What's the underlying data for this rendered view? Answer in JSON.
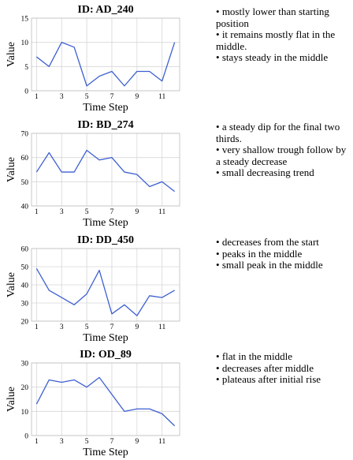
{
  "chart_data": [
    {
      "type": "line",
      "title": "ID: AD_240",
      "xlabel": "Time Step",
      "ylabel": "Value",
      "x": [
        1,
        2,
        3,
        4,
        5,
        6,
        7,
        8,
        9,
        10,
        11,
        12
      ],
      "series": [
        {
          "values": [
            7,
            5,
            10,
            9,
            1,
            3,
            4,
            1,
            4,
            4,
            2,
            10
          ]
        }
      ],
      "ylim": [
        0,
        15
      ],
      "yticks": [
        0,
        5,
        10,
        15
      ],
      "xticks": [
        1,
        3,
        5,
        7,
        9,
        11
      ],
      "grid": true,
      "line_color": "#3d5fd1",
      "descriptions": [
        "mostly lower than starting position",
        "it remains mostly flat in the middle.",
        "stays steady in the middle"
      ]
    },
    {
      "type": "line",
      "title": "ID: BD_274",
      "xlabel": "Time Step",
      "ylabel": "Value",
      "x": [
        1,
        2,
        3,
        4,
        5,
        6,
        7,
        8,
        9,
        10,
        11,
        12
      ],
      "series": [
        {
          "values": [
            54,
            62,
            54,
            54,
            63,
            59,
            60,
            54,
            53,
            48,
            50,
            46
          ]
        }
      ],
      "ylim": [
        40,
        70
      ],
      "yticks": [
        40,
        50,
        60,
        70
      ],
      "xticks": [
        1,
        3,
        5,
        7,
        9,
        11
      ],
      "grid": true,
      "line_color": "#3d5fd1",
      "descriptions": [
        "a steady dip for the final two thirds.",
        "very shallow trough follow by a steady decrease",
        "small decreasing trend"
      ]
    },
    {
      "type": "line",
      "title": "ID: DD_450",
      "xlabel": "Time Step",
      "ylabel": "Value",
      "x": [
        1,
        2,
        3,
        4,
        5,
        6,
        7,
        8,
        9,
        10,
        11,
        12
      ],
      "series": [
        {
          "values": [
            49,
            37,
            33,
            29,
            35,
            48,
            24,
            29,
            23,
            34,
            33,
            37
          ]
        }
      ],
      "ylim": [
        20,
        60
      ],
      "yticks": [
        20,
        30,
        40,
        50,
        60
      ],
      "xticks": [
        1,
        3,
        5,
        7,
        9,
        11
      ],
      "grid": true,
      "line_color": "#3d5fd1",
      "descriptions": [
        "decreases from the start",
        "peaks in the middle",
        "small peak in the middle"
      ]
    },
    {
      "type": "line",
      "title": "ID: OD_89",
      "xlabel": "Time Step",
      "ylabel": "Value",
      "x": [
        1,
        2,
        3,
        4,
        5,
        6,
        7,
        8,
        9,
        10,
        11,
        12
      ],
      "series": [
        {
          "values": [
            13,
            23,
            22,
            23,
            20,
            24,
            17,
            10,
            11,
            11,
            9,
            4
          ]
        }
      ],
      "ylim": [
        0,
        30
      ],
      "yticks": [
        0,
        10,
        20,
        30
      ],
      "xticks": [
        1,
        3,
        5,
        7,
        9,
        11
      ],
      "grid": true,
      "line_color": "#3d5fd1",
      "descriptions": [
        "flat in the middle",
        "decreases after middle",
        "plateaus after initial rise"
      ]
    }
  ]
}
